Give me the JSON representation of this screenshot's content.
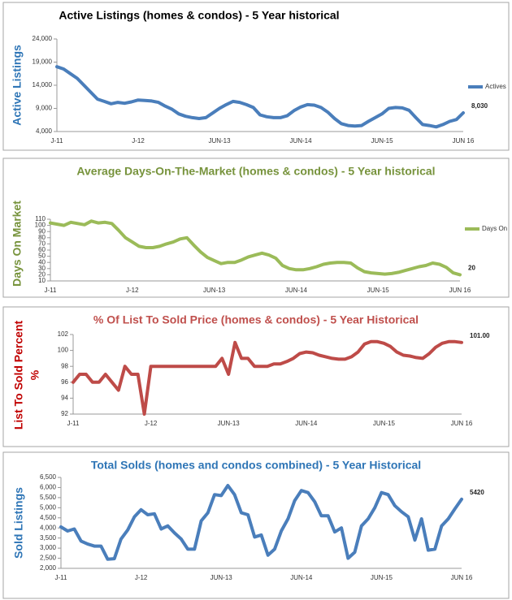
{
  "chart_data": [
    {
      "type": "line",
      "title": "Active Listings (homes & condos) - 5 Year historical",
      "title_color": "#000000",
      "y_label": [
        "Active Listings"
      ],
      "y_label_color": "#2e75b6",
      "legend": "right",
      "data_label": "last",
      "categories": [
        "J-11",
        null,
        null,
        null,
        null,
        null,
        null,
        null,
        null,
        null,
        null,
        null,
        "J-12",
        null,
        null,
        null,
        null,
        null,
        null,
        null,
        null,
        null,
        null,
        null,
        "JUN-13",
        null,
        null,
        null,
        null,
        null,
        null,
        null,
        null,
        null,
        null,
        null,
        "JUN-14",
        null,
        null,
        null,
        null,
        null,
        null,
        null,
        null,
        null,
        null,
        null,
        "JUN-15",
        null,
        null,
        null,
        null,
        null,
        null,
        null,
        null,
        null,
        null,
        null,
        "JUN 16"
      ],
      "series": [
        {
          "name": "Actives",
          "color": "#4a7ebb",
          "values": [
            18000,
            17500,
            16500,
            15500,
            14000,
            12500,
            11000,
            10500,
            10000,
            10300,
            10100,
            10400,
            10800,
            10700,
            10600,
            10300,
            9500,
            8800,
            7800,
            7300,
            7000,
            6800,
            7000,
            8000,
            9000,
            9800,
            10500,
            10300,
            9800,
            9200,
            7600,
            7200,
            7000,
            7000,
            7400,
            8500,
            9300,
            9800,
            9700,
            9200,
            8200,
            6800,
            5700,
            5300,
            5200,
            5300,
            6200,
            7000,
            7800,
            9000,
            9200,
            9100,
            8600,
            7000,
            5500,
            5300,
            5000,
            5500,
            6200,
            6600,
            8030
          ],
          "value_labels": [
            null,
            null,
            null,
            null,
            null,
            null,
            null,
            null,
            null,
            null,
            null,
            null,
            null,
            null,
            null,
            null,
            null,
            null,
            null,
            null,
            null,
            null,
            null,
            null,
            null,
            null,
            null,
            null,
            null,
            null,
            null,
            null,
            null,
            null,
            null,
            null,
            null,
            null,
            null,
            null,
            null,
            null,
            null,
            null,
            null,
            null,
            null,
            null,
            null,
            null,
            null,
            null,
            null,
            null,
            null,
            null,
            null,
            null,
            null,
            null,
            "8,030"
          ]
        }
      ],
      "ylim": [
        4000,
        24000
      ],
      "yticks": [
        {
          "value": 4000,
          "label": "4,000"
        },
        {
          "value": 9000,
          "label": "9,000"
        },
        {
          "value": 14000,
          "label": "14,000"
        },
        {
          "value": 19000,
          "label": "19,000"
        },
        {
          "value": 24000,
          "label": "24,000"
        }
      ]
    },
    {
      "type": "line",
      "title": "Average Days-On-The-Market (homes & condos) - 5 Year historical",
      "title_color": "#77933c",
      "y_label": [
        "Days On Market"
      ],
      "y_label_color": "#77933c",
      "legend": "right",
      "data_label": "last",
      "categories": [
        "J-11",
        null,
        null,
        null,
        null,
        null,
        null,
        null,
        null,
        null,
        null,
        null,
        "J-12",
        null,
        null,
        null,
        null,
        null,
        null,
        null,
        null,
        null,
        null,
        null,
        "JUN-13",
        null,
        null,
        null,
        null,
        null,
        null,
        null,
        null,
        null,
        null,
        null,
        "JUN-14",
        null,
        null,
        null,
        null,
        null,
        null,
        null,
        null,
        null,
        null,
        null,
        "JUN-15",
        null,
        null,
        null,
        null,
        null,
        null,
        null,
        null,
        null,
        null,
        null,
        "JUN 16"
      ],
      "series": [
        {
          "name": "Days On",
          "color": "#9bbb59",
          "values": [
            104,
            102,
            100,
            105,
            103,
            101,
            107,
            104,
            105,
            103,
            92,
            80,
            73,
            66,
            64,
            64,
            66,
            70,
            73,
            78,
            80,
            68,
            57,
            48,
            43,
            38,
            40,
            40,
            44,
            49,
            52,
            55,
            52,
            47,
            35,
            30,
            28,
            28,
            30,
            33,
            37,
            39,
            40,
            40,
            39,
            31,
            25,
            23,
            22,
            21,
            22,
            24,
            27,
            30,
            33,
            35,
            39,
            37,
            32,
            23,
            20
          ]
        }
      ],
      "ylim": [
        10,
        110
      ],
      "yticks": [
        10,
        20,
        30,
        40,
        50,
        60,
        70,
        80,
        90,
        100,
        110
      ]
    },
    {
      "type": "line",
      "title": "% Of List To Sold Price (homes & condos) - 5 Year Historical",
      "title_color": "#c0504d",
      "y_label": [
        "List To Sold Percent",
        "%"
      ],
      "y_label_color": "#c00000",
      "data_label": "last",
      "categories": [
        "J-11",
        null,
        null,
        null,
        null,
        null,
        null,
        null,
        null,
        null,
        null,
        null,
        "J-12",
        null,
        null,
        null,
        null,
        null,
        null,
        null,
        null,
        null,
        null,
        null,
        "JUN-13",
        null,
        null,
        null,
        null,
        null,
        null,
        null,
        null,
        null,
        null,
        null,
        "JUN-14",
        null,
        null,
        null,
        null,
        null,
        null,
        null,
        null,
        null,
        null,
        null,
        "JUN-15",
        null,
        null,
        null,
        null,
        null,
        null,
        null,
        null,
        null,
        null,
        null,
        "JUN 16"
      ],
      "series": [
        {
          "color": "#be4b48",
          "values": [
            96,
            97,
            97,
            96,
            96,
            97,
            96,
            95,
            98,
            97,
            97,
            92,
            98,
            98,
            98,
            98,
            98,
            98,
            98,
            98,
            98,
            98,
            98,
            99,
            97,
            101,
            99,
            99,
            98,
            98,
            98,
            98.3,
            98.3,
            98.6,
            99,
            99.6,
            99.8,
            99.7,
            99.4,
            99.2,
            99,
            98.9,
            98.9,
            99.2,
            99.8,
            100.8,
            101.1,
            101.1,
            100.9,
            100.5,
            99.8,
            99.4,
            99.3,
            99.1,
            99,
            99.6,
            100.4,
            100.9,
            101.1,
            101.1,
            101
          ],
          "value_labels": [
            null,
            null,
            null,
            null,
            null,
            null,
            null,
            null,
            null,
            null,
            null,
            null,
            null,
            null,
            null,
            null,
            null,
            null,
            null,
            null,
            null,
            null,
            null,
            null,
            null,
            null,
            null,
            null,
            null,
            null,
            null,
            null,
            null,
            null,
            null,
            null,
            null,
            null,
            null,
            null,
            null,
            null,
            null,
            null,
            null,
            null,
            null,
            null,
            null,
            null,
            null,
            null,
            null,
            null,
            null,
            null,
            null,
            null,
            null,
            null,
            "101.00"
          ]
        }
      ],
      "ylim": [
        92,
        102
      ],
      "yticks": [
        92,
        94,
        96,
        98,
        100,
        102
      ]
    },
    {
      "type": "line",
      "title": "Total Solds (homes and condos combined) - 5 Year Historical",
      "title_color": "#2e75b6",
      "y_label": [
        "Sold Listings"
      ],
      "y_label_color": "#2e75b6",
      "data_label": "last",
      "categories": [
        "J-11",
        null,
        null,
        null,
        null,
        null,
        null,
        null,
        null,
        null,
        null,
        null,
        "J-12",
        null,
        null,
        null,
        null,
        null,
        null,
        null,
        null,
        null,
        null,
        null,
        "JUN-13",
        null,
        null,
        null,
        null,
        null,
        null,
        null,
        null,
        null,
        null,
        null,
        "JUN-14",
        null,
        null,
        null,
        null,
        null,
        null,
        null,
        null,
        null,
        null,
        null,
        "JUN-15",
        null,
        null,
        null,
        null,
        null,
        null,
        null,
        null,
        null,
        null,
        null,
        "JUN 16"
      ],
      "series": [
        {
          "color": "#4a7ebb",
          "values": [
            4050,
            3850,
            3950,
            3350,
            3200,
            3100,
            3100,
            2450,
            2480,
            3450,
            3900,
            4550,
            4900,
            4650,
            4700,
            3950,
            4100,
            3750,
            3450,
            2950,
            2950,
            4350,
            4750,
            5650,
            5600,
            6100,
            5650,
            4750,
            4650,
            3550,
            3650,
            2650,
            2950,
            3850,
            4450,
            5350,
            5850,
            5750,
            5300,
            4600,
            4600,
            3800,
            4000,
            2500,
            2800,
            4100,
            4450,
            5000,
            5750,
            5650,
            5100,
            4800,
            4550,
            3400,
            4450,
            2900,
            2950,
            4100,
            4450,
            4950,
            5420
          ]
        }
      ],
      "ylim": [
        2000,
        6500
      ],
      "yticks": [
        {
          "value": 2000,
          "label": "2,000"
        },
        {
          "value": 2500,
          "label": "2,500"
        },
        {
          "value": 3000,
          "label": "3,000"
        },
        {
          "value": 3500,
          "label": "3,500"
        },
        {
          "value": 4000,
          "label": "4,000"
        },
        {
          "value": 4500,
          "label": "4,500"
        },
        {
          "value": 5000,
          "label": "5,000"
        },
        {
          "value": 5500,
          "label": "5,500"
        },
        {
          "value": 6000,
          "label": "6,000"
        },
        {
          "value": 6500,
          "label": "6,500"
        }
      ]
    }
  ]
}
